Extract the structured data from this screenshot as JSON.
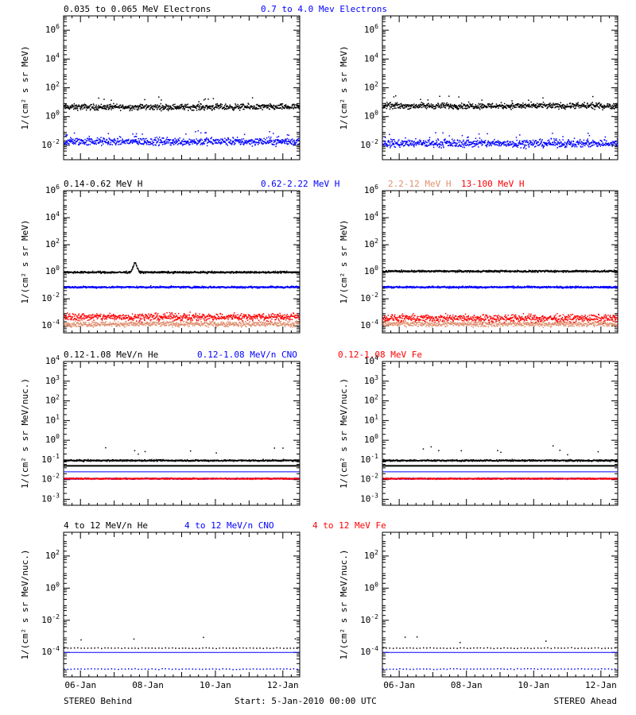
{
  "colors": {
    "black": "#000000",
    "blue": "#0000ff",
    "red": "#ff0000",
    "salmon": "#e09070"
  },
  "footer": {
    "left": "STEREO Behind",
    "center": "Start:  5-Jan-2010 00:00 UTC",
    "right": "STEREO Ahead"
  },
  "chart_data": [
    {
      "type": "scatter",
      "row": 0,
      "side": "behind",
      "yscale": "log",
      "ylabel": "1/(cm² s sr MeV)",
      "ylim": [
        0.001,
        10000000
      ],
      "yticks": [
        {
          "v": 0.01,
          "e": "-2"
        },
        {
          "v": 1,
          "e": "0"
        },
        {
          "v": 100,
          "e": "2"
        },
        {
          "v": 10000,
          "e": "4"
        },
        {
          "v": 1000000,
          "e": "6"
        }
      ],
      "x_ticks": [
        "06-Jan",
        "08-Jan",
        "10-Jan",
        "12-Jan"
      ],
      "xlim_days": [
        5.5,
        12.5
      ],
      "titles": [
        {
          "text": "0.035 to 0.065 MeV Electrons",
          "color": "black"
        },
        {
          "text": "0.7 to 4.0 Mev Electrons",
          "color": "blue"
        }
      ],
      "series": [
        {
          "name": "0.035 to 0.065 MeV Electrons",
          "color": "black",
          "level": 5,
          "spread": 0.15,
          "outliers": 12
        },
        {
          "name": "0.7 to 4.0 Mev Electrons",
          "color": "blue",
          "level": 0.02,
          "spread": 0.2,
          "outliers": 25
        }
      ]
    },
    {
      "type": "scatter",
      "row": 0,
      "side": "ahead",
      "yscale": "log",
      "ylabel": "1/(cm² s sr MeV)",
      "ylim": [
        0.001,
        10000000
      ],
      "yticks": [
        {
          "v": 0.01,
          "e": "-2"
        },
        {
          "v": 1,
          "e": "0"
        },
        {
          "v": 100,
          "e": "2"
        },
        {
          "v": 10000,
          "e": "4"
        },
        {
          "v": 1000000,
          "e": "6"
        }
      ],
      "x_ticks": [
        "06-Jan",
        "08-Jan",
        "10-Jan",
        "12-Jan"
      ],
      "xlim_days": [
        5.5,
        12.5
      ],
      "titles": [],
      "series": [
        {
          "name": "0.035 to 0.065 MeV Electrons",
          "color": "black",
          "level": 6,
          "spread": 0.15,
          "outliers": 12
        },
        {
          "name": "0.7 to 4.0 Mev Electrons",
          "color": "blue",
          "level": 0.015,
          "spread": 0.2,
          "outliers": 25
        }
      ]
    },
    {
      "type": "scatter",
      "row": 1,
      "side": "behind",
      "yscale": "log",
      "ylabel": "1/(cm² s sr MeV)",
      "ylim": [
        3e-05,
        1000000
      ],
      "yticks": [
        {
          "v": 0.0001,
          "e": "-4"
        },
        {
          "v": 0.01,
          "e": "-2"
        },
        {
          "v": 1,
          "e": "0"
        },
        {
          "v": 100,
          "e": "2"
        },
        {
          "v": 10000,
          "e": "4"
        },
        {
          "v": 1000000,
          "e": "6"
        }
      ],
      "x_ticks": [
        "06-Jan",
        "08-Jan",
        "10-Jan",
        "12-Jan"
      ],
      "xlim_days": [
        5.5,
        12.5
      ],
      "titles": [
        {
          "text": "0.14-0.62 MeV H",
          "color": "black"
        },
        {
          "text": "0.62-2.22 MeV H",
          "color": "blue"
        },
        {
          "text": "2.2-12 MeV H",
          "color": "salmon"
        },
        {
          "text": "13-100 MeV H",
          "color": "red"
        }
      ],
      "series": [
        {
          "name": "0.14-0.62 MeV H",
          "color": "black",
          "level": 1,
          "spread": 0.05,
          "outliers": 0,
          "bump_day": 7.6,
          "bump_level": 5
        },
        {
          "name": "0.62-2.22 MeV H",
          "color": "blue",
          "level": 0.08,
          "spread": 0.05,
          "outliers": 0
        },
        {
          "name": "2.2-12 MeV H",
          "color": "salmon",
          "level": 0.00015,
          "spread": 0.15,
          "outliers": 0
        },
        {
          "name": "13-100 MeV H",
          "color": "red",
          "level": 0.0005,
          "spread": 0.2,
          "outliers": 0
        }
      ]
    },
    {
      "type": "scatter",
      "row": 1,
      "side": "ahead",
      "yscale": "log",
      "ylabel": "1/(cm² s sr MeV)",
      "ylim": [
        3e-05,
        1000000
      ],
      "yticks": [
        {
          "v": 0.0001,
          "e": "-4"
        },
        {
          "v": 0.01,
          "e": "-2"
        },
        {
          "v": 1,
          "e": "0"
        },
        {
          "v": 100,
          "e": "2"
        },
        {
          "v": 10000,
          "e": "4"
        },
        {
          "v": 1000000,
          "e": "6"
        }
      ],
      "x_ticks": [
        "06-Jan",
        "08-Jan",
        "10-Jan",
        "12-Jan"
      ],
      "xlim_days": [
        5.5,
        12.5
      ],
      "titles": [],
      "series": [
        {
          "name": "0.14-0.62 MeV H",
          "color": "black",
          "level": 1.2,
          "spread": 0.05,
          "outliers": 0
        },
        {
          "name": "0.62-2.22 MeV H",
          "color": "blue",
          "level": 0.08,
          "spread": 0.05,
          "outliers": 0
        },
        {
          "name": "2.2-12 MeV H",
          "color": "salmon",
          "level": 0.00015,
          "spread": 0.15,
          "outliers": 0
        },
        {
          "name": "13-100 MeV H",
          "color": "red",
          "level": 0.0004,
          "spread": 0.2,
          "outliers": 0
        }
      ]
    },
    {
      "type": "scatter",
      "row": 2,
      "side": "behind",
      "yscale": "log",
      "ylabel": "1/(cm² s sr MeV/nuc.)",
      "ylim": [
        0.0005,
        10000
      ],
      "yticks": [
        {
          "v": 0.001,
          "e": "-3"
        },
        {
          "v": 0.01,
          "e": "-2"
        },
        {
          "v": 0.1,
          "e": "-1"
        },
        {
          "v": 1,
          "e": "0"
        },
        {
          "v": 10,
          "e": "1"
        },
        {
          "v": 100,
          "e": "2"
        },
        {
          "v": 1000,
          "e": "3"
        },
        {
          "v": 10000,
          "e": "4"
        }
      ],
      "x_ticks": [
        "06-Jan",
        "08-Jan",
        "10-Jan",
        "12-Jan"
      ],
      "xlim_days": [
        5.5,
        12.5
      ],
      "titles": [
        {
          "text": "0.12-1.08 MeV/n He",
          "color": "black"
        },
        {
          "text": "0.12-1.08 MeV/n CNO",
          "color": "blue"
        },
        {
          "text": "0.12-1.08 MeV Fe",
          "color": "red"
        }
      ],
      "series": [
        {
          "name": "0.12-1.08 MeV/n He",
          "color": "black",
          "level": 0.1,
          "spread": 0.03,
          "outliers": 8,
          "line_level": 0.05
        },
        {
          "name": "0.12-1.08 MeV/n CNO",
          "color": "blue",
          "level": 0.012,
          "spread": 0.02,
          "outliers": 0,
          "line_level": 0.025
        },
        {
          "name": "0.12-1.08 MeV Fe",
          "color": "red",
          "level": 0.012,
          "spread": 0.02,
          "outliers": 0
        }
      ]
    },
    {
      "type": "scatter",
      "row": 2,
      "side": "ahead",
      "yscale": "log",
      "ylabel": "1/(cm² s sr MeV/nuc.)",
      "ylim": [
        0.0005,
        10000
      ],
      "yticks": [
        {
          "v": 0.001,
          "e": "-3"
        },
        {
          "v": 0.01,
          "e": "-2"
        },
        {
          "v": 0.1,
          "e": "-1"
        },
        {
          "v": 1,
          "e": "0"
        },
        {
          "v": 10,
          "e": "1"
        },
        {
          "v": 100,
          "e": "2"
        },
        {
          "v": 1000,
          "e": "3"
        },
        {
          "v": 10000,
          "e": "4"
        }
      ],
      "x_ticks": [
        "06-Jan",
        "08-Jan",
        "10-Jan",
        "12-Jan"
      ],
      "xlim_days": [
        5.5,
        12.5
      ],
      "titles": [],
      "series": [
        {
          "name": "0.12-1.08 MeV/n He",
          "color": "black",
          "level": 0.1,
          "spread": 0.03,
          "outliers": 10,
          "line_level": 0.05
        },
        {
          "name": "0.12-1.08 MeV/n CNO",
          "color": "blue",
          "level": 0.012,
          "spread": 0.02,
          "outliers": 0,
          "line_level": 0.025
        },
        {
          "name": "0.12-1.08 MeV Fe",
          "color": "red",
          "level": 0.012,
          "spread": 0.02,
          "outliers": 0
        }
      ]
    },
    {
      "type": "scatter",
      "row": 3,
      "side": "behind",
      "yscale": "log",
      "ylabel": "1/(cm² s sr MeV/nuc.)",
      "ylim": [
        3e-06,
        3000
      ],
      "yticks": [
        {
          "v": 0.0001,
          "e": "-4"
        },
        {
          "v": 0.01,
          "e": "-2"
        },
        {
          "v": 1,
          "e": "0"
        },
        {
          "v": 100,
          "e": "2"
        }
      ],
      "x_ticks": [
        "06-Jan",
        "08-Jan",
        "10-Jan",
        "12-Jan"
      ],
      "xlim_days": [
        5.5,
        12.5
      ],
      "titles": [
        {
          "text": "4 to 12 MeV/n He",
          "color": "black"
        },
        {
          "text": "4 to 12 MeV/n CNO",
          "color": "blue"
        },
        {
          "text": "4 to 12 MeV Fe",
          "color": "red"
        }
      ],
      "series": [
        {
          "name": "4 to 12 MeV/n He",
          "color": "black",
          "level": 0.0002,
          "spread": 0.02,
          "outliers": 4,
          "sparse": true
        },
        {
          "name": "4 to 12 MeV/n CNO",
          "color": "blue",
          "level": 1e-05,
          "spread": 0.02,
          "outliers": 0,
          "sparse": true,
          "line_level": 0.0001
        }
      ]
    },
    {
      "type": "scatter",
      "row": 3,
      "side": "ahead",
      "yscale": "log",
      "ylabel": "1/(cm² s sr MeV/nuc.)",
      "ylim": [
        3e-06,
        3000
      ],
      "yticks": [
        {
          "v": 0.0001,
          "e": "-4"
        },
        {
          "v": 0.01,
          "e": "-2"
        },
        {
          "v": 1,
          "e": "0"
        },
        {
          "v": 100,
          "e": "2"
        }
      ],
      "x_ticks": [
        "06-Jan",
        "08-Jan",
        "10-Jan",
        "12-Jan"
      ],
      "xlim_days": [
        5.5,
        12.5
      ],
      "titles": [],
      "series": [
        {
          "name": "4 to 12 MeV/n He",
          "color": "black",
          "level": 0.0002,
          "spread": 0.02,
          "outliers": 4,
          "sparse": true
        },
        {
          "name": "4 to 12 MeV/n CNO",
          "color": "blue",
          "level": 1e-05,
          "spread": 0.02,
          "outliers": 0,
          "sparse": true,
          "line_level": 0.0001
        }
      ]
    }
  ]
}
